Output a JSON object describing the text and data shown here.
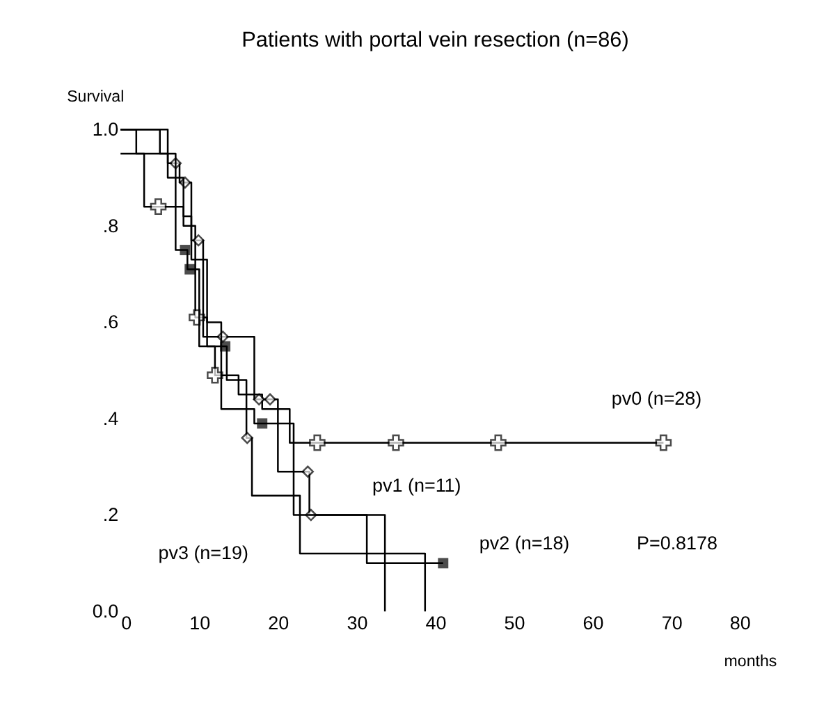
{
  "chart_data": {
    "type": "step",
    "title": "Patients with portal vein resection (n=86)",
    "xlabel": "months",
    "ylabel": "Survival",
    "xlim": [
      0,
      80
    ],
    "xticks": [
      0,
      10,
      20,
      30,
      40,
      50,
      60,
      70,
      80
    ],
    "ylim": [
      0,
      1.0
    ],
    "yticks": [
      {
        "value": 0,
        "label": "0.0"
      },
      {
        "value": 0.2,
        "label": ".2"
      },
      {
        "value": 0.4,
        "label": ".4"
      },
      {
        "value": 0.6,
        "label": ".6"
      },
      {
        "value": 0.8,
        "label": ".8"
      },
      {
        "value": 1.0,
        "label": "1.0"
      }
    ],
    "grid": false,
    "line_style": "solid",
    "series": [
      {
        "marker": "none",
        "color": "#000000",
        "x": [
          0,
          2,
          3,
          8,
          9.5,
          11,
          12,
          15,
          18,
          21.5,
          69
        ],
        "values": [
          1.0,
          0.95,
          0.84,
          0.8,
          0.61,
          0.55,
          0.49,
          0.45,
          0.42,
          0.35,
          0.35
        ]
      },
      {
        "type": "scatter",
        "marker": "cross",
        "color": "#000000",
        "x": [
          4.8,
          9.7,
          12,
          25,
          35,
          48,
          69
        ],
        "values": [
          0.84,
          0.61,
          0.49,
          0.35,
          0.35,
          0.35,
          0.35
        ]
      },
      {
        "marker": "none",
        "color": "#000000",
        "x": [
          0,
          6,
          7.5,
          9,
          10.5,
          17,
          20,
          24,
          33.6
        ],
        "values": [
          1.0,
          0.93,
          0.89,
          0.77,
          0.57,
          0.44,
          0.29,
          0.2,
          0
        ]
      },
      {
        "type": "scatter",
        "marker": "diamond",
        "color": "#000000",
        "x": [
          7,
          8.2,
          9.9,
          13,
          17.6,
          19,
          23.8,
          24.2
        ],
        "values": [
          0.93,
          0.89,
          0.77,
          0.57,
          0.44,
          0.44,
          0.29,
          0.2
        ]
      },
      {
        "marker": "none",
        "color": "#000000",
        "x": [
          0,
          5,
          7,
          8.5,
          10,
          13.5,
          16,
          17,
          22,
          31.3,
          41
        ],
        "values": [
          1.0,
          0.95,
          0.75,
          0.71,
          0.55,
          0.48,
          0.42,
          0.39,
          0.2,
          0.1,
          0.1
        ]
      },
      {
        "type": "scatter",
        "marker": "square",
        "color": "#000000",
        "x": [
          8.2,
          8.8,
          13.3,
          18,
          41
        ],
        "values": [
          0.75,
          0.71,
          0.55,
          0.39,
          0.1
        ]
      },
      {
        "marker": "none",
        "color": "#000000",
        "x": [
          0,
          3.7,
          6,
          8,
          9,
          11,
          12.8,
          16,
          16.7,
          22.8,
          38.7
        ],
        "values": [
          0.95,
          0.95,
          0.9,
          0.82,
          0.73,
          0.6,
          0.42,
          0.36,
          0.24,
          0.12,
          0
        ]
      },
      {
        "type": "scatter",
        "marker": "diamond",
        "color": "#000000",
        "x": [
          16.1
        ],
        "values": [
          0.36
        ]
      }
    ],
    "annotations": [
      "pv0    (n=28)",
      "pv1    (n=11)",
      "pv2    (n=18)",
      "P=0.8178",
      "pv3    (n=19)"
    ]
  }
}
